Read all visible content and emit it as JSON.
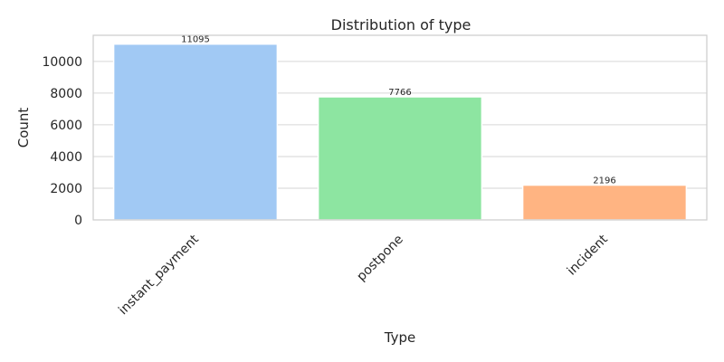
{
  "chart_data": {
    "type": "bar",
    "title": "Distribution of type",
    "xlabel": "Type",
    "ylabel": "Count",
    "categories": [
      "instant_payment",
      "postpone",
      "incident"
    ],
    "values": [
      11095,
      7766,
      2196
    ],
    "data_labels": [
      "11095",
      "7766",
      "2196"
    ],
    "colors": [
      "#a1c9f4",
      "#8de5a1",
      "#ffb482"
    ],
    "ylim": [
      0,
      11650
    ],
    "yticks": [
      0,
      2000,
      4000,
      6000,
      8000,
      10000
    ],
    "ytick_labels": [
      "0",
      "2000",
      "4000",
      "6000",
      "8000",
      "10000"
    ],
    "grid": true,
    "legend": "none"
  }
}
